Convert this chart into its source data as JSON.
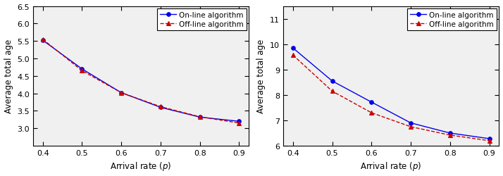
{
  "left": {
    "x": [
      0.4,
      0.5,
      0.6,
      0.7,
      0.8,
      0.9
    ],
    "online_y": [
      5.52,
      4.7,
      4.02,
      3.6,
      3.32,
      3.2
    ],
    "offline_y": [
      5.55,
      4.65,
      4.02,
      3.62,
      3.33,
      3.15
    ],
    "ylim": [
      2.5,
      6.5
    ],
    "yticks": [
      3.0,
      3.5,
      4.0,
      4.5,
      5.0,
      5.5,
      6.0,
      6.5
    ],
    "ylabel": "Average total age",
    "xlabel": "Arrival rate ($p$)"
  },
  "right": {
    "x": [
      0.4,
      0.5,
      0.6,
      0.7,
      0.8,
      0.9
    ],
    "online_y": [
      9.85,
      8.55,
      7.72,
      6.9,
      6.5,
      6.28
    ],
    "offline_y": [
      9.57,
      8.15,
      7.3,
      6.75,
      6.42,
      6.2
    ],
    "ylim": [
      6.0,
      11.5
    ],
    "yticks": [
      6,
      7,
      8,
      9,
      10,
      11
    ],
    "ylabel": "Average total age",
    "xlabel": "Arrival rate ($p$)"
  },
  "online_color": "#0000ee",
  "offline_color": "#cc0000",
  "online_label": "On-line algorithm",
  "offline_label": "Off-line algorithm",
  "online_marker": "o",
  "offline_marker": "^",
  "online_linestyle": "-",
  "offline_linestyle": "--",
  "marker_size": 4,
  "line_width": 1.0,
  "xticks": [
    0.4,
    0.5,
    0.6,
    0.7,
    0.8,
    0.9
  ],
  "tick_fontsize": 8,
  "label_fontsize": 8.5,
  "legend_fontsize": 7.5,
  "bg_color": "#f0f0f0"
}
